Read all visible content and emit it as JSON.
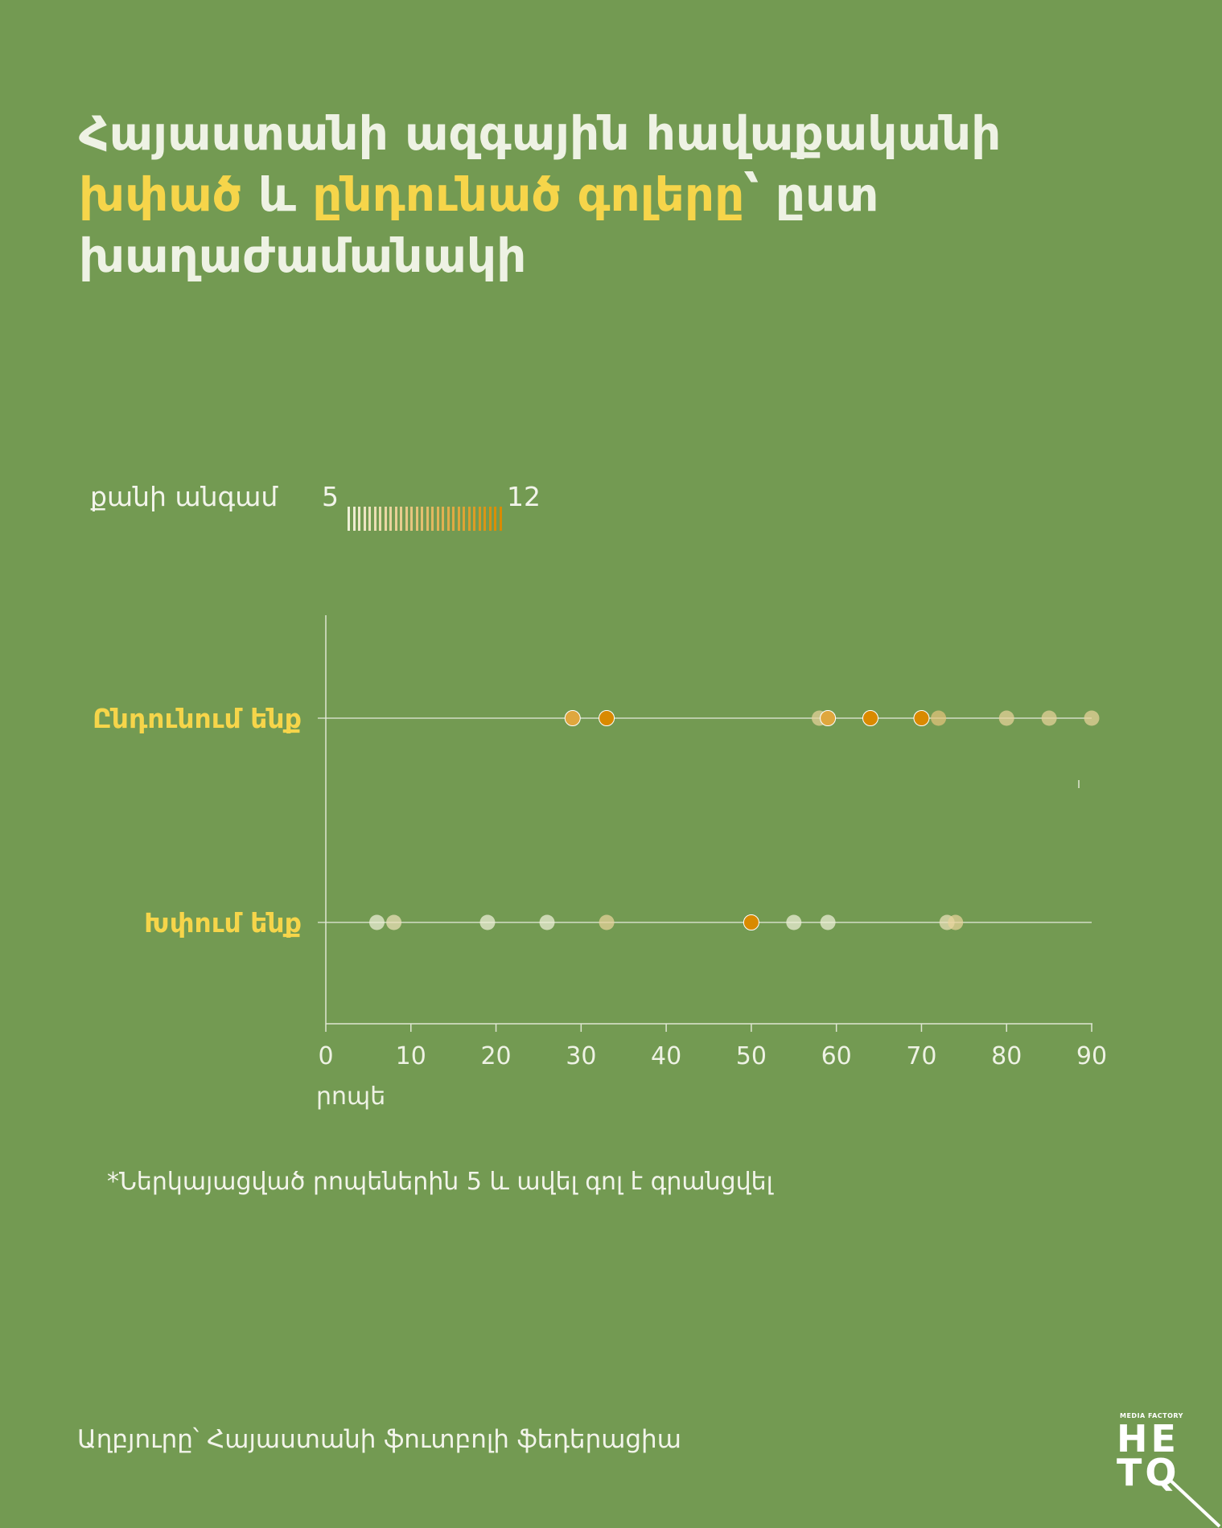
{
  "title": {
    "line1": "Հայաստանի ազգային հավաքականի",
    "hl1": "խփած",
    "conj": " և ",
    "hl2": "ընդունած գոլերը",
    "rest": "՝ ըստ",
    "line3": "խաղաժամանակի"
  },
  "legend": {
    "label": "քանի անգամ",
    "min": "5",
    "max": "12"
  },
  "chart_data": {
    "type": "scatter",
    "xlim": [
      0,
      90
    ],
    "xticks": [
      "0",
      "10",
      "20",
      "30",
      "40",
      "50",
      "60",
      "70",
      "80",
      "90"
    ],
    "xlabel": "րոպե",
    "color_scale": {
      "min": 5,
      "max": 12,
      "low_color": "#eef0d8",
      "high_color": "#d98a00"
    },
    "rows": [
      {
        "label": "Ընդունում ենք",
        "points": [
          {
            "x": 29,
            "count": 10
          },
          {
            "x": 33,
            "count": 12
          },
          {
            "x": 58,
            "count": 7
          },
          {
            "x": 59,
            "count": 10
          },
          {
            "x": 64,
            "count": 12
          },
          {
            "x": 70,
            "count": 12
          },
          {
            "x": 72,
            "count": 8
          },
          {
            "x": 80,
            "count": 7
          },
          {
            "x": 85,
            "count": 7
          },
          {
            "x": 90,
            "count": 7
          }
        ]
      },
      {
        "label": "Խփում ենք",
        "points": [
          {
            "x": 6,
            "count": 5
          },
          {
            "x": 8,
            "count": 6
          },
          {
            "x": 19,
            "count": 5
          },
          {
            "x": 26,
            "count": 5
          },
          {
            "x": 33,
            "count": 7
          },
          {
            "x": 50,
            "count": 12
          },
          {
            "x": 55,
            "count": 5
          },
          {
            "x": 59,
            "count": 5
          },
          {
            "x": 73,
            "count": 6
          },
          {
            "x": 74,
            "count": 7
          }
        ]
      }
    ]
  },
  "footnote": "*Ներկայացված րոպեներին 5 և ավել գոլ է գրանցվել",
  "source": "Աղբյուրը՝ Հայաստանի ֆուտբոլի ֆեդերացիա",
  "logo": {
    "top": "MEDIA FACTORY",
    "line1": "HE",
    "line2": "TQ"
  }
}
